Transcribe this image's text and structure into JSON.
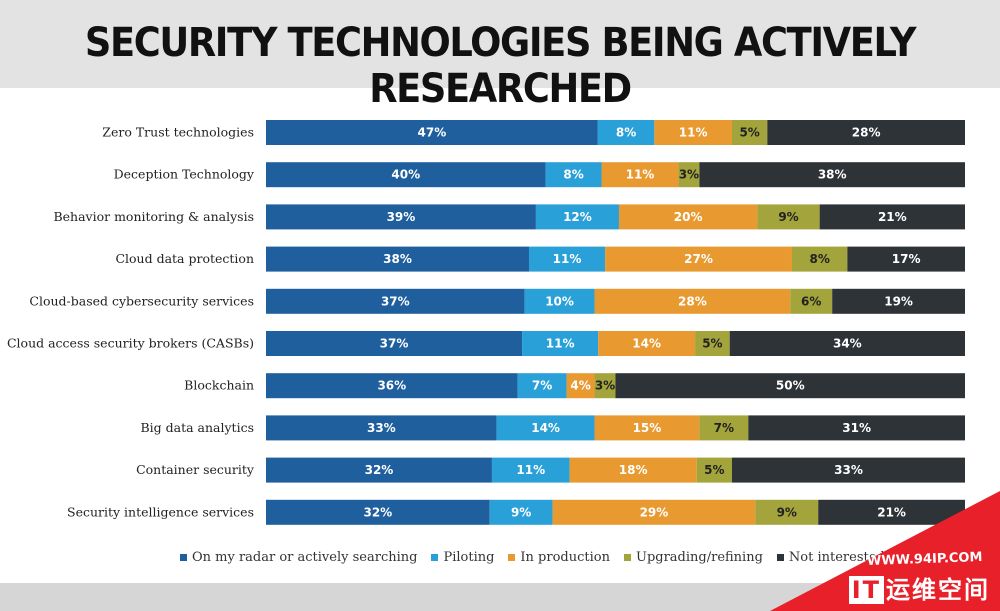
{
  "title": "SECURITY TECHNOLOGIES BEING ACTIVELY RESEARCHED",
  "chart_data": {
    "type": "bar",
    "orientation": "horizontal",
    "stacked": true,
    "title": "SECURITY TECHNOLOGIES BEING ACTIVELY RESEARCHED",
    "unit": "%",
    "categories": [
      "Zero Trust technologies",
      "Deception Technology",
      "Behavior monitoring & analysis",
      "Cloud data protection",
      "Cloud-based cybersecurity services",
      "Cloud access security brokers (CASBs)",
      "Blockchain",
      "Big data analytics",
      "Container security",
      "Security intelligence services"
    ],
    "series": [
      {
        "name": "On my radar or actively searching",
        "color": "#1f5f9e",
        "label_color": "#ffffff",
        "values": [
          47,
          40,
          39,
          38,
          37,
          37,
          36,
          33,
          32,
          32
        ]
      },
      {
        "name": "Piloting",
        "color": "#2aa0d8",
        "label_color": "#ffffff",
        "values": [
          8,
          8,
          12,
          11,
          10,
          11,
          7,
          14,
          11,
          9
        ]
      },
      {
        "name": "In production",
        "color": "#e89a31",
        "label_color": "#ffffff",
        "values": [
          11,
          11,
          20,
          27,
          28,
          14,
          4,
          15,
          18,
          29
        ]
      },
      {
        "name": "Upgrading/refining",
        "color": "#a3a43b",
        "label_color": "#222222",
        "values": [
          5,
          3,
          9,
          8,
          6,
          5,
          3,
          7,
          5,
          9
        ]
      },
      {
        "name": "Not interested",
        "color": "#2e3338",
        "label_color": "#ffffff",
        "values": [
          28,
          38,
          21,
          17,
          19,
          34,
          50,
          31,
          33,
          21
        ]
      }
    ],
    "legend_position": "bottom"
  },
  "watermark": {
    "url": "WWW.94IP.COM",
    "brand_it": "IT",
    "brand_rest": "运维空间"
  }
}
